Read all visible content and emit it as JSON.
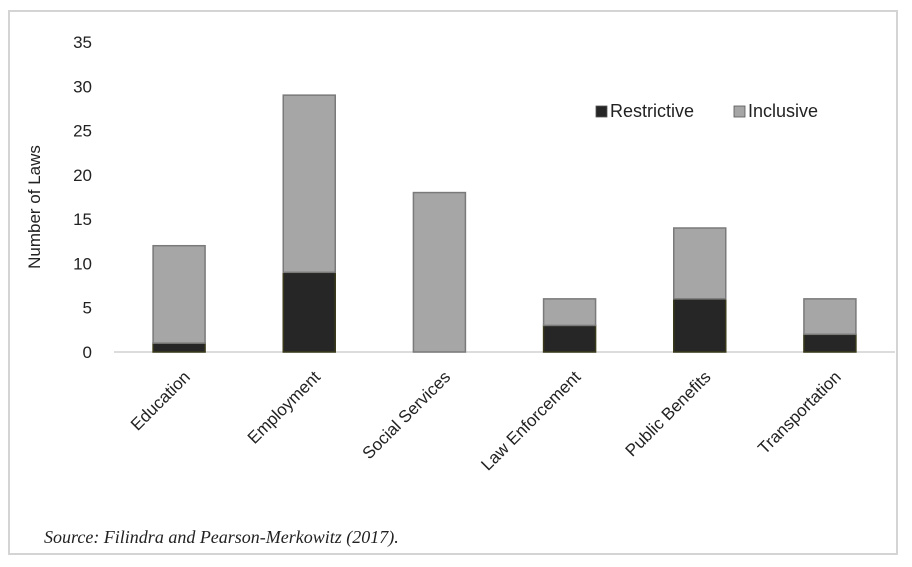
{
  "chart_data": {
    "type": "bar",
    "stacked": true,
    "categories": [
      "Education",
      "Employment",
      "Social Services",
      "Law Enforcement",
      "Public Benefits",
      "Transportation"
    ],
    "series": [
      {
        "name": "Restrictive",
        "values": [
          1,
          9,
          0,
          3,
          6,
          2
        ],
        "color": "#262626"
      },
      {
        "name": "Inclusive",
        "values": [
          11,
          20,
          18,
          3,
          8,
          4
        ],
        "color": "#a6a6a6"
      }
    ],
    "ylabel": "Number of Laws",
    "ylim": [
      0,
      35
    ],
    "yticks": [
      0,
      5,
      10,
      15,
      20,
      25,
      30,
      35
    ],
    "grid": false,
    "legend": "top-right"
  },
  "caption": "Source: Filindra and Pearson-Merkowitz (2017)."
}
